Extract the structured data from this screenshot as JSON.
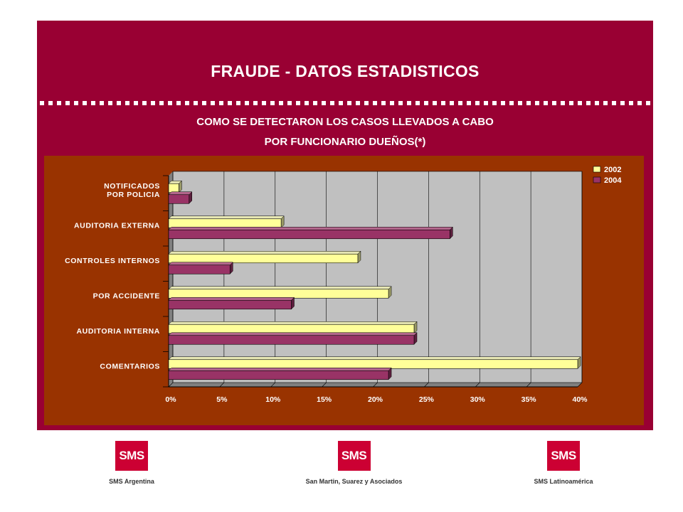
{
  "slide": {
    "title": "FRAUDE - DATOS ESTADISTICOS",
    "subtitle_line1": "COMO SE DETECTARON LOS CASOS LLEVADOS A CABO",
    "subtitle_line2": "POR FUNCIONARIO DUEÑOS(*)"
  },
  "colors": {
    "panel": "#990033",
    "chart_frame": "#993300",
    "plot_area": "#c0c0c0",
    "series_2002": "#ffff99",
    "series_2004": "#993366",
    "logo_red": "#cc0033"
  },
  "chart_data": {
    "type": "bar",
    "orientation": "horizontal",
    "categories": [
      [
        "NOTIFICADOS",
        "POR POLICIA"
      ],
      [
        "AUDITORIA EXTERNA"
      ],
      [
        "CONTROLES INTERNOS"
      ],
      [
        "POR ACCIDENTE"
      ],
      [
        "AUDITORIA INTERNA"
      ],
      [
        "COMENTARIOS"
      ]
    ],
    "series": [
      {
        "name": "2002",
        "values": [
          1.0,
          11.0,
          18.5,
          21.5,
          24.0,
          40.0
        ]
      },
      {
        "name": "2004",
        "values": [
          2.0,
          27.5,
          6.0,
          12.0,
          24.0,
          21.5
        ]
      }
    ],
    "xlim": [
      0,
      40
    ],
    "xticks": [
      0,
      5,
      10,
      15,
      20,
      25,
      30,
      35,
      40
    ],
    "xtick_labels": [
      "0%",
      "5%",
      "10%",
      "15%",
      "20%",
      "25%",
      "30%",
      "35%",
      "40%"
    ],
    "grid": true,
    "legend": "top-right"
  },
  "logos": [
    {
      "mark": "SMS",
      "caption": "SMS Argentina"
    },
    {
      "mark": "SMS",
      "caption": "San Martin, Suarez y Asociados"
    },
    {
      "mark": "SMS",
      "caption": "SMS Latinoamérica"
    }
  ]
}
